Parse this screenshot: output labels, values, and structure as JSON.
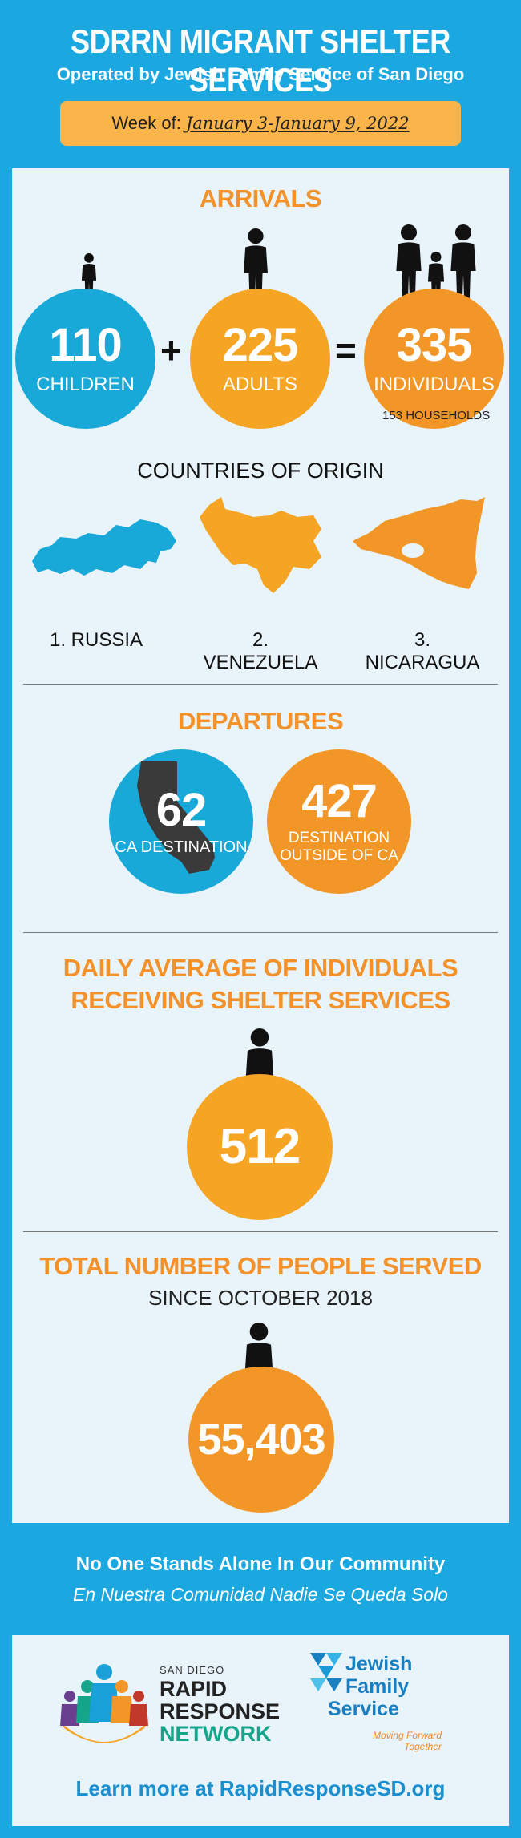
{
  "header": {
    "title": "SDRRN MIGRANT SHELTER SERVICES",
    "subtitle": "Operated by Jewish Family Service of San Diego",
    "week_label": "Week of:",
    "week_dates": "January 3-January 9, 2022"
  },
  "arrivals": {
    "title": "ARRIVALS",
    "children": {
      "value": "110",
      "label": "CHILDREN"
    },
    "plus": "+",
    "adults": {
      "value": "225",
      "label": "ADULTS"
    },
    "equals": "=",
    "individuals": {
      "value": "335",
      "label": "INDIVIDUALS"
    },
    "households": "153 HOUSEHOLDS"
  },
  "origin": {
    "title": "COUNTRIES OF ORIGIN",
    "countries": [
      "1. RUSSIA",
      "2. VENEZUELA",
      "3. NICARAGUA"
    ]
  },
  "departures": {
    "title": "DEPARTURES",
    "ca": {
      "value": "62",
      "label": "CA DESTINATION"
    },
    "outside": {
      "value": "427",
      "label_line1": "DESTINATION",
      "label_line2": "OUTSIDE OF CA"
    }
  },
  "daily": {
    "title_line1": "DAILY AVERAGE OF INDIVIDUALS",
    "title_line2": "RECEIVING SHELTER SERVICES",
    "value": "512"
  },
  "total": {
    "title": "TOTAL NUMBER OF PEOPLE SERVED",
    "subtitle": "SINCE OCTOBER 2018",
    "value": "55,403"
  },
  "footer": {
    "tagline_en": "No One Stands Alone In Our Community",
    "tagline_es": "En Nuestra Comunidad Nadie Se Queda Solo",
    "rrn_small": "SAN DIEGO",
    "rrn_line1": "RAPID",
    "rrn_line2": "RESPONSE",
    "rrn_line3": "NETWORK",
    "jfs_line1": "Jewish",
    "jfs_line2": "Family",
    "jfs_line3": "Service",
    "jfs_tag1": "Moving Forward",
    "jfs_tag2": "Together",
    "learn_more": "Learn more at RapidResponseSD.org"
  },
  "colors": {
    "background": "#1ba8e0",
    "panel": "#e8f3fa",
    "orange": "#f6a423",
    "dark_orange": "#f29727",
    "blue_circle": "#18a9d8",
    "title_orange": "#f3922b"
  },
  "icons": [
    "person-icon",
    "russia-map-icon",
    "venezuela-map-icon",
    "nicaragua-map-icon",
    "california-map-icon",
    "rrn-logo",
    "jfs-logo"
  ]
}
